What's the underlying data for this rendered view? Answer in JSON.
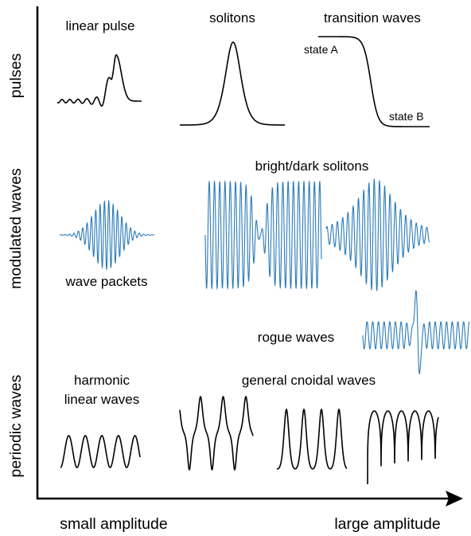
{
  "axes": {
    "x_left": "small amplitude",
    "x_right": "large amplitude"
  },
  "rows": {
    "pulses": "pulses",
    "modulated": "modulated waves",
    "periodic": "periodic waves"
  },
  "labels": {
    "linear_pulse": "linear pulse",
    "solitons": "solitons",
    "transition_waves": "transition waves",
    "state_a": "state A",
    "state_b": "state B",
    "bright_dark_solitons": "bright/dark solitons",
    "wave_packets": "wave packets",
    "rogue_waves": "rogue waves",
    "harmonic_1": "harmonic",
    "harmonic_2": "linear waves",
    "general_cnoidal": "general cnoidal waves"
  },
  "colors": {
    "ink": "#000000",
    "modulated": "#2a7ab8"
  }
}
